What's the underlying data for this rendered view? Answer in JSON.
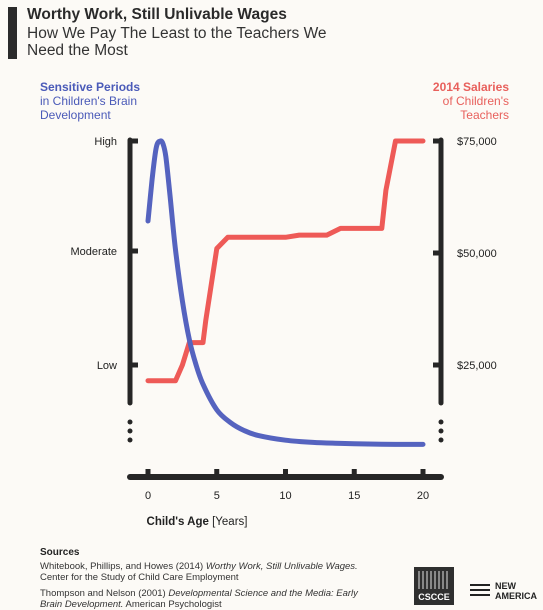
{
  "header": {
    "title": "Worthy Work, Still Unlivable Wages",
    "subtitle": "How We Pay The Least to the Teachers We Need the Most"
  },
  "legend_left": {
    "head": "Sensitive Periods",
    "sub": "in Children's Brain Development"
  },
  "legend_right": {
    "head": "2014 Salaries",
    "sub": "of Children's Teachers"
  },
  "colors": {
    "sensitive": "#5563bf",
    "salaries": "#ee5a57",
    "axis": "#262626"
  },
  "chart_data": {
    "type": "line",
    "title": "Worthy Work, Still Unlivable Wages",
    "xlabel": "Child's Age",
    "xlabel_unit": "[Years]",
    "x_ticks": [
      0,
      5,
      10,
      15,
      20
    ],
    "xlim": [
      0,
      20
    ],
    "left_axis": {
      "ticks": [
        "High",
        "Moderate",
        "Low"
      ],
      "scale": "qualitative",
      "ylim": [
        0,
        1
      ]
    },
    "right_axis": {
      "ticks": [
        "$75,000",
        "$50,000",
        "$25,000"
      ],
      "values": [
        75000,
        50000,
        25000
      ],
      "ylim": [
        0,
        80000
      ]
    },
    "series": [
      {
        "name": "Sensitive Periods",
        "axis": "left",
        "x": [
          0,
          0.3,
          0.6,
          0.9,
          1.1,
          1.3,
          1.6,
          2.0,
          2.5,
          3.0,
          3.5,
          4.0,
          5.0,
          6.0,
          7.0,
          8.0,
          10.0,
          12.0,
          14.0,
          16.0,
          18.0,
          20.0
        ],
        "y": [
          0.75,
          0.88,
          0.98,
          1.0,
          0.99,
          0.95,
          0.83,
          0.66,
          0.5,
          0.38,
          0.3,
          0.24,
          0.16,
          0.12,
          0.095,
          0.08,
          0.065,
          0.058,
          0.055,
          0.053,
          0.052,
          0.052
        ]
      },
      {
        "name": "2014 Salaries",
        "axis": "right",
        "x": [
          0,
          2.0,
          2.5,
          3.0,
          4.0,
          4.2,
          5.0,
          5.8,
          7.0,
          9.0,
          10.0,
          11.0,
          12.0,
          13.0,
          14.0,
          15.0,
          16.0,
          17.0,
          17.3,
          18.0,
          20.0
        ],
        "y": [
          21500,
          21500,
          25000,
          30000,
          30000,
          35000,
          51000,
          53500,
          53500,
          53500,
          53500,
          54000,
          54000,
          54000,
          55500,
          55500,
          55500,
          55500,
          64000,
          75000,
          75000
        ]
      }
    ]
  },
  "sources": {
    "label": "Sources",
    "lines": [
      {
        "authors": "Whitebook, Phillips, and Howes (2014) ",
        "title": "Worthy Work, Still Unlivable Wages.",
        "rest": " Center for the Study of Child Care Employment"
      },
      {
        "authors": "Thompson and Nelson (2001) ",
        "title": "Developmental Science and the Media: Early Brain Development.",
        "rest": " American Psychologist"
      }
    ]
  },
  "logos": {
    "cscce": "CSCCE",
    "new_america": "NEW\nAMERICA"
  }
}
